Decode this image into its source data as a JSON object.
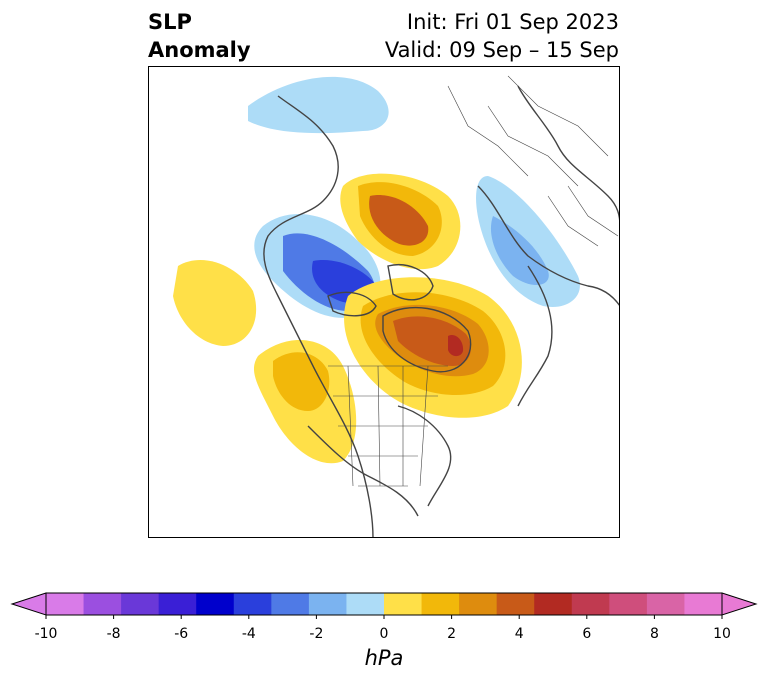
{
  "title": {
    "left_line1": "SLP",
    "left_line2": "Anomaly",
    "init": "Init: Fri 01 Sep 2023",
    "valid": "Valid: 09 Sep – 15 Sep"
  },
  "colorbar": {
    "unit": "hPa",
    "ticks": [
      "-10",
      "-8",
      "-6",
      "-4",
      "-2",
      "0",
      "2",
      "4",
      "6",
      "8",
      "10"
    ],
    "colors": [
      "#d97be8",
      "#9b4fe0",
      "#6a38d8",
      "#3a1fd6",
      "#0000cc",
      "#2a3fdc",
      "#4f7ae6",
      "#7bb3f0",
      "#addcf7",
      "#ffffff",
      "#ffe048",
      "#f2b80a",
      "#de8c0e",
      "#c85a18",
      "#b22a22",
      "#c03a50",
      "#cf4e7c",
      "#d964a6",
      "#e87ad4"
    ],
    "low_color": "#d97be8",
    "high_color": "#e87ad4"
  },
  "map": {
    "projection": "north-polar-stereographic",
    "region": "Northern Hemisphere",
    "border_color": "#444444"
  }
}
